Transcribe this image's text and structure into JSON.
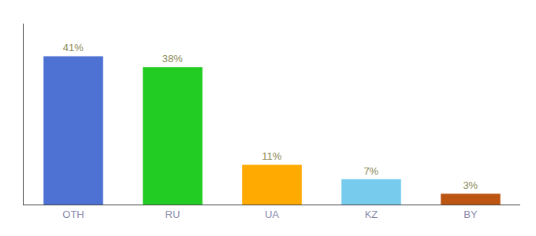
{
  "chart_data": {
    "type": "bar",
    "categories": [
      "OTH",
      "RU",
      "UA",
      "KZ",
      "BY"
    ],
    "values": [
      41,
      38,
      11,
      7,
      3
    ],
    "value_labels": [
      "41%",
      "38%",
      "11%",
      "7%",
      "3%"
    ],
    "colors": [
      "#4d72d4",
      "#22cc22",
      "#ffaa00",
      "#77ccee",
      "#bb5511"
    ],
    "ylim": [
      0,
      50
    ],
    "data_labels": true,
    "tick_labels": "x",
    "grid": false
  }
}
